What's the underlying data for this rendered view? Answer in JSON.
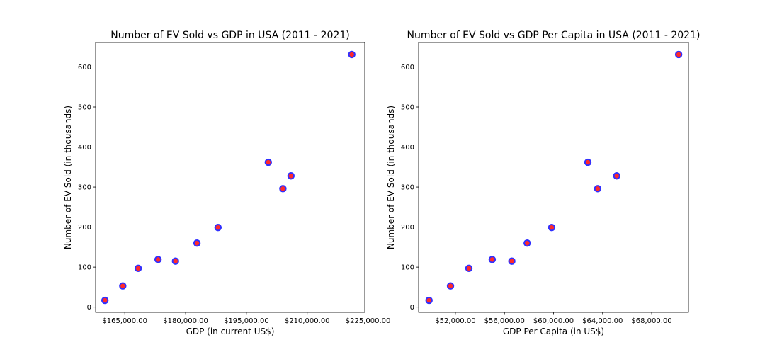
{
  "chart_data": [
    {
      "type": "scatter",
      "title": "Number of EV Sold vs GDP in USA (2011 - 2021)",
      "xlabel": "GDP (in current US$)",
      "ylabel": "Number of EV Sold (in thousands)",
      "x": [
        160100,
        164500,
        168300,
        173200,
        177500,
        182800,
        188000,
        200400,
        204000,
        206000,
        221000
      ],
      "y": [
        17,
        53,
        97,
        119,
        115,
        160,
        199,
        362,
        296,
        328,
        631
      ],
      "xticks": [
        165000,
        180000,
        195000,
        210000,
        225000
      ],
      "xtick_labels": [
        "$165,000.00",
        "$180,000.00",
        "$195,000.00",
        "$210,000.00",
        "$225,000.00"
      ],
      "yticks": [
        0,
        100,
        200,
        300,
        400,
        500,
        600
      ],
      "ytick_labels": [
        "0",
        "100",
        "200",
        "300",
        "400",
        "500",
        "600"
      ],
      "xlim": [
        157800,
        224200
      ],
      "ylim": [
        -13,
        661
      ],
      "grid": false,
      "marker_face_color": "#ff2a2a",
      "marker_edge_color": "#3030ff"
    },
    {
      "type": "scatter",
      "title": "Number of EV Sold vs GDP Per Capita in USA (2011 - 2021)",
      "xlabel": "GDP Per Capita (in US$)",
      "ylabel": "Number of EV Sold (in thousands)",
      "x": [
        49850,
        51600,
        53100,
        55000,
        56600,
        57850,
        59850,
        62800,
        63600,
        65150,
        70200
      ],
      "y": [
        17,
        53,
        97,
        119,
        115,
        160,
        199,
        362,
        296,
        328,
        631
      ],
      "xticks": [
        52000,
        56000,
        60000,
        64000,
        68000
      ],
      "xtick_labels": [
        "$52,000.00",
        "$56,000.00",
        "$60,000.00",
        "$64,000.00",
        "$68,000.00"
      ],
      "yticks": [
        0,
        100,
        200,
        300,
        400,
        500,
        600
      ],
      "ytick_labels": [
        "0",
        "100",
        "200",
        "300",
        "400",
        "500",
        "600"
      ],
      "xlim": [
        49000,
        71000
      ],
      "ylim": [
        -13,
        661
      ],
      "grid": false,
      "marker_face_color": "#ff2a2a",
      "marker_edge_color": "#3030ff"
    }
  ]
}
